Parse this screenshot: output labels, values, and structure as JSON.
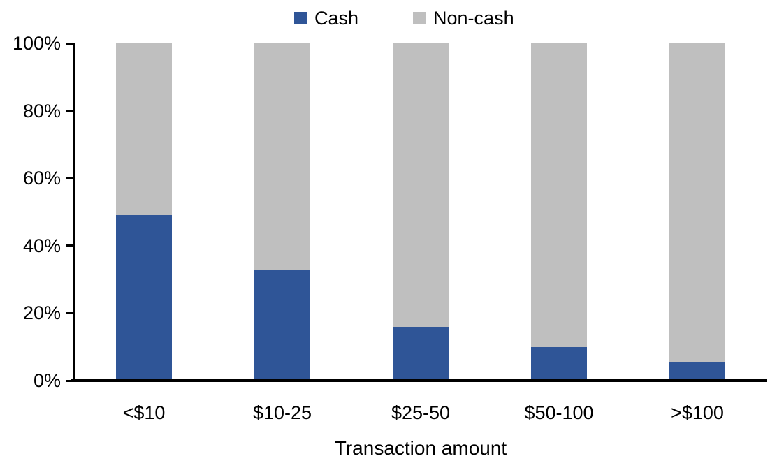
{
  "chart_data": {
    "type": "bar",
    "stacked": true,
    "percent_stacked": true,
    "title": "",
    "categories": [
      "<$10",
      "$10-25",
      "$25-50",
      "$50-100",
      ">$100"
    ],
    "series": [
      {
        "name": "Cash",
        "color": "#2F5597",
        "values": [
          49,
          33,
          16,
          10,
          5.5
        ]
      },
      {
        "name": "Non-cash",
        "color": "#BFBFBF",
        "values": [
          51,
          67,
          84,
          90,
          94.5
        ]
      }
    ],
    "xlabel": "Transaction amount",
    "ylabel": "",
    "ylim": [
      0,
      100
    ],
    "yticks": [
      "0%",
      "20%",
      "40%",
      "60%",
      "80%",
      "100%"
    ],
    "legend_position": "top-center",
    "grid": false,
    "background_color": "#FFFFFF",
    "axis_color": "#000000"
  }
}
